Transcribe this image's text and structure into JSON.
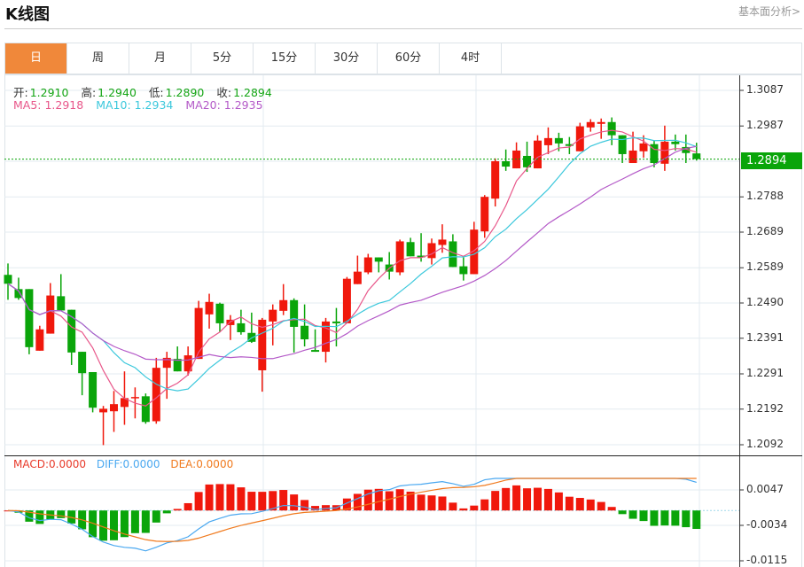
{
  "header": {
    "title": "K线图",
    "link": "基本面分析>"
  },
  "tabs": [
    {
      "label": "日",
      "active": true
    },
    {
      "label": "周"
    },
    {
      "label": "月"
    },
    {
      "label": "5分"
    },
    {
      "label": "15分"
    },
    {
      "label": "30分"
    },
    {
      "label": "60分"
    },
    {
      "label": "4时"
    }
  ],
  "ohlc_info": {
    "open_label": "开:",
    "open": "1.2910",
    "high_label": "高:",
    "high": "1.2940",
    "low_label": "低:",
    "low": "1.2890",
    "close_label": "收:",
    "close": "1.2894"
  },
  "ma_info": {
    "ma5": "MA5: 1.2918",
    "ma10": "MA10: 1.2934",
    "ma20": "MA20: 1.2935"
  },
  "macd_info": {
    "macd": "MACD:0.0000",
    "diff": "DIFF:0.0000",
    "dea": "DEA:0.0000"
  },
  "colors": {
    "up": "#f0180c",
    "down": "#0aa50a",
    "ma5": "#e8578a",
    "ma10": "#3cc8dc",
    "ma20": "#b45ac8",
    "diff": "#4aa8f0",
    "dea": "#f07a1e",
    "accent": "#f0883a"
  },
  "chart_data": {
    "type": "candlestick",
    "current_price": "1.2894",
    "price_ticks": [
      "1.3087",
      "1.2987",
      "1.2788",
      "1.2689",
      "1.2589",
      "1.2490",
      "1.2391",
      "1.2291",
      "1.2192",
      "1.2092"
    ],
    "ylim": [
      1.2092,
      1.3087
    ],
    "macd_ticks": [
      "0.0047",
      "-0.0034",
      "-0.0115"
    ],
    "macd_ylim": [
      -0.0115,
      0.0047
    ],
    "candles": [
      [
        1.2569,
        1.2601,
        1.2499,
        1.2544
      ],
      [
        1.2529,
        1.2561,
        1.2499,
        1.2504
      ],
      [
        1.2529,
        1.2529,
        1.2346,
        1.2366
      ],
      [
        1.2356,
        1.2426,
        1.2356,
        1.2416
      ],
      [
        1.2404,
        1.2546,
        1.2404,
        1.2511
      ],
      [
        1.2509,
        1.2571,
        1.2469,
        1.2469
      ],
      [
        1.2471,
        1.2471,
        1.2316,
        1.2351
      ],
      [
        1.2353,
        1.2353,
        1.2231,
        1.2293
      ],
      [
        1.2296,
        1.2296,
        1.2183,
        1.2196
      ],
      [
        1.2183,
        1.2201,
        1.2091,
        1.2193
      ],
      [
        1.2186,
        1.2243,
        1.2128,
        1.2206
      ],
      [
        1.2198,
        1.2298,
        1.2148,
        1.2223
      ],
      [
        1.2223,
        1.2253,
        1.2166,
        1.2226
      ],
      [
        1.2228,
        1.2236,
        1.2151,
        1.2156
      ],
      [
        1.2158,
        1.2336,
        1.2151,
        1.2308
      ],
      [
        1.2308,
        1.2353,
        1.2221,
        1.2336
      ],
      [
        1.2333,
        1.2368,
        1.2298,
        1.2298
      ],
      [
        1.2298,
        1.2368,
        1.2286,
        1.2343
      ],
      [
        1.2333,
        1.2496,
        1.2333,
        1.2476
      ],
      [
        1.2458,
        1.2516,
        1.2418,
        1.2493
      ],
      [
        1.2488,
        1.2491,
        1.2408,
        1.2433
      ],
      [
        1.2428,
        1.2456,
        1.2386,
        1.2443
      ],
      [
        1.2433,
        1.2471,
        1.2401,
        1.2408
      ],
      [
        1.2406,
        1.2463,
        1.2378,
        1.2381
      ],
      [
        1.2301,
        1.2448,
        1.2241,
        1.2443
      ],
      [
        1.2438,
        1.2486,
        1.2371,
        1.2471
      ],
      [
        1.2468,
        1.2543,
        1.2456,
        1.2498
      ],
      [
        1.2498,
        1.2503,
        1.2351,
        1.2423
      ],
      [
        1.2426,
        1.2486,
        1.2368,
        1.2388
      ],
      [
        1.2358,
        1.2416,
        1.2353,
        1.2353
      ],
      [
        1.2353,
        1.2448,
        1.2323,
        1.2438
      ],
      [
        1.2438,
        1.2476,
        1.2368,
        1.2433
      ],
      [
        1.2433,
        1.2563,
        1.2433,
        1.2558
      ],
      [
        1.2543,
        1.2623,
        1.2543,
        1.2578
      ],
      [
        1.2576,
        1.2628,
        1.2571,
        1.2618
      ],
      [
        1.2618,
        1.2618,
        1.2576,
        1.2606
      ],
      [
        1.2598,
        1.2633,
        1.2556,
        1.2578
      ],
      [
        1.2576,
        1.2668,
        1.2568,
        1.2663
      ],
      [
        1.2661,
        1.2673,
        1.2621,
        1.2621
      ],
      [
        1.2623,
        1.2686,
        1.2606,
        1.2618
      ],
      [
        1.2616,
        1.2671,
        1.2598,
        1.2658
      ],
      [
        1.2653,
        1.2711,
        1.2631,
        1.2668
      ],
      [
        1.2663,
        1.2683,
        1.2591,
        1.2591
      ],
      [
        1.2593,
        1.2618,
        1.2553,
        1.2571
      ],
      [
        1.2571,
        1.2718,
        1.2571,
        1.2696
      ],
      [
        1.2691,
        1.2793,
        1.2673,
        1.2788
      ],
      [
        1.2783,
        1.2896,
        1.2761,
        1.2888
      ],
      [
        1.2888,
        1.2921,
        1.2861,
        1.2873
      ],
      [
        1.2868,
        1.2941,
        1.2868,
        1.2918
      ],
      [
        1.2903,
        1.2943,
        1.2858,
        1.2871
      ],
      [
        1.2868,
        1.2961,
        1.2868,
        1.2946
      ],
      [
        1.2933,
        1.2983,
        1.2908,
        1.2953
      ],
      [
        1.2953,
        1.2968,
        1.2916,
        1.2938
      ],
      [
        1.2936,
        1.2956,
        1.2908,
        1.2931
      ],
      [
        1.2916,
        1.2996,
        1.2916,
        1.2986
      ],
      [
        1.2983,
        1.3006,
        1.2971,
        1.2998
      ],
      [
        1.2993,
        1.3008,
        1.2951,
        1.2998
      ],
      [
        1.2998,
        1.3011,
        1.2933,
        1.2961
      ],
      [
        1.2961,
        1.2961,
        1.2883,
        1.2908
      ],
      [
        1.2883,
        1.2971,
        1.2883,
        1.2918
      ],
      [
        1.2916,
        1.2961,
        1.2898,
        1.2938
      ],
      [
        1.2936,
        1.2946,
        1.2871,
        1.2883
      ],
      [
        1.2881,
        1.2988,
        1.2861,
        1.2943
      ],
      [
        1.2943,
        1.2963,
        1.2918,
        1.2936
      ],
      [
        1.2928,
        1.2963,
        1.2883,
        1.2911
      ],
      [
        1.291,
        1.294,
        1.289,
        1.2894
      ]
    ]
  }
}
